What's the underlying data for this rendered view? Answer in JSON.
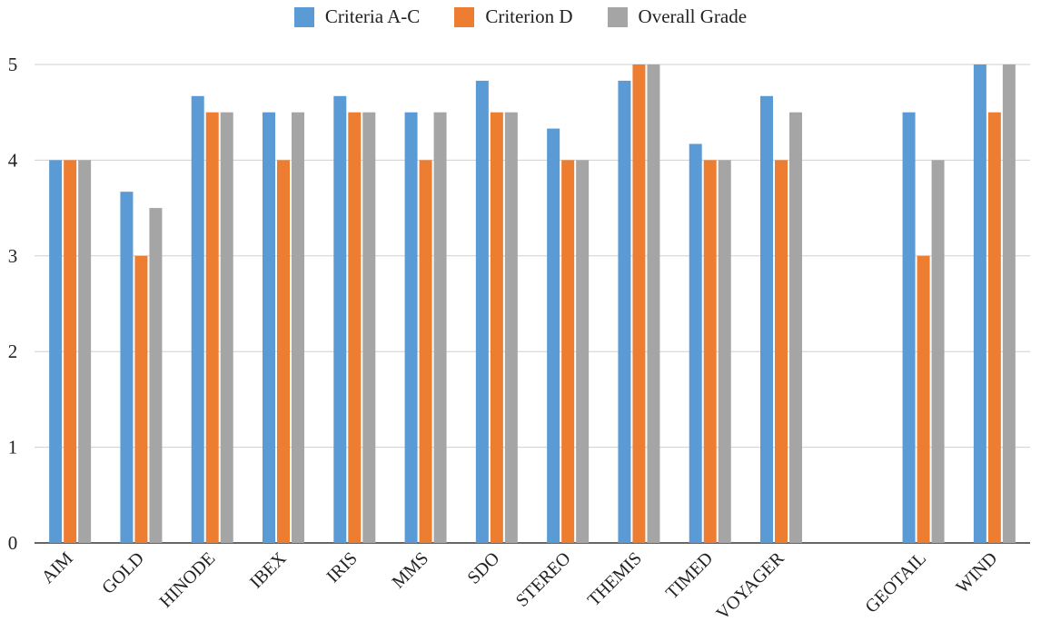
{
  "chart_data": {
    "type": "bar",
    "categories": [
      "AIM",
      "GOLD",
      "HINODE",
      "IBEX",
      "IRIS",
      "MMS",
      "SDO",
      "STEREO",
      "THEMIS",
      "TIMED",
      "VOYAGER",
      "",
      "GEOTAIL",
      "WIND"
    ],
    "series": [
      {
        "name": "Criteria A-C",
        "color": "#5b9bd5",
        "values": [
          4.0,
          3.67,
          4.67,
          4.5,
          4.67,
          4.5,
          4.83,
          4.33,
          4.83,
          4.17,
          4.67,
          null,
          4.5,
          5.0
        ]
      },
      {
        "name": "Criterion D",
        "color": "#ed7d31",
        "values": [
          4.0,
          3.0,
          4.5,
          4.0,
          4.5,
          4.0,
          4.5,
          4.0,
          5.0,
          4.0,
          4.0,
          null,
          3.0,
          4.5
        ]
      },
      {
        "name": "Overall Grade",
        "color": "#a5a5a5",
        "values": [
          4.0,
          3.5,
          4.5,
          4.5,
          4.5,
          4.5,
          4.5,
          4.0,
          5.0,
          4.0,
          4.5,
          null,
          4.0,
          5.0
        ]
      }
    ],
    "yticks": [
      0,
      1,
      2,
      3,
      4,
      5
    ],
    "ylim": [
      0,
      5
    ],
    "grid": true,
    "legend_position": "top"
  }
}
